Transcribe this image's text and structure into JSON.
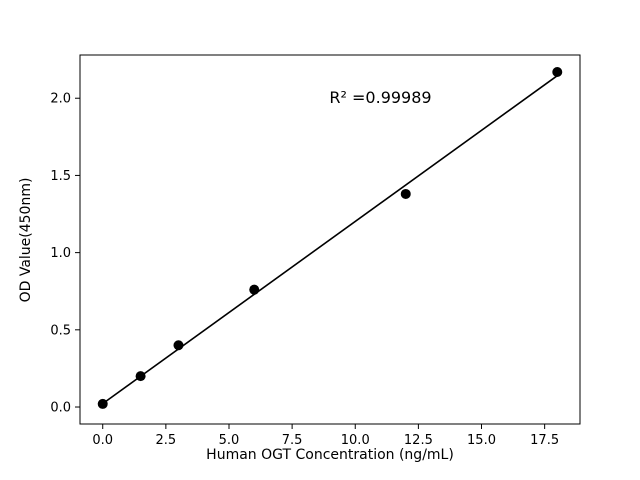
{
  "chart_data": {
    "type": "scatter",
    "title": "",
    "xlabel": "Human OGT Concentration (ng/mL)",
    "ylabel": "OD Value(450nm)",
    "x": [
      0,
      1.5,
      3,
      6,
      12,
      18
    ],
    "y": [
      0.02,
      0.2,
      0.4,
      0.76,
      1.38,
      2.17
    ],
    "xlim": [
      -0.9,
      18.9
    ],
    "ylim": [
      -0.11,
      2.28
    ],
    "xticks": [
      0.0,
      2.5,
      5.0,
      7.5,
      10.0,
      12.5,
      15.0,
      17.5
    ],
    "xtick_labels": [
      "0.0",
      "2.5",
      "5.0",
      "7.5",
      "10.0",
      "12.5",
      "15.0",
      "17.5"
    ],
    "yticks": [
      0.0,
      0.5,
      1.0,
      1.5,
      2.0
    ],
    "ytick_labels": [
      "0.0",
      "0.5",
      "1.0",
      "1.5",
      "2.0"
    ],
    "fit_line": {
      "slope": 0.118,
      "intercept": 0.022,
      "x_start": 0,
      "x_end": 18
    },
    "annotation": {
      "text": "R² =0.99989",
      "x": 11.0,
      "y": 1.97
    },
    "marker_color": "#000000",
    "line_color": "#000000",
    "background_color": "#ffffff",
    "grid": false,
    "legend": null
  }
}
